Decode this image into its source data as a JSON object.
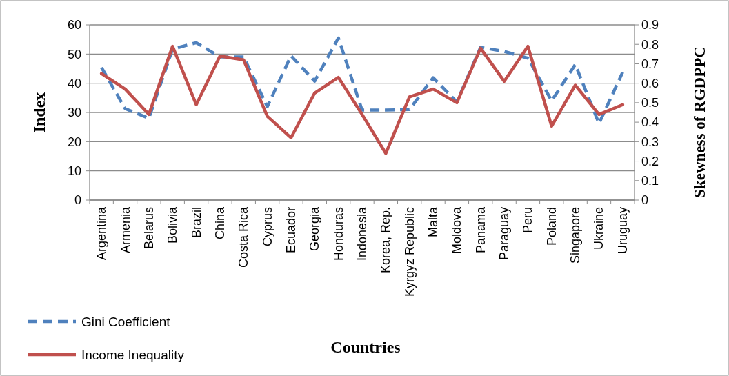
{
  "chart_data": {
    "type": "line",
    "xlabel": "Countries",
    "ylabel": "Index",
    "y2label": "Skewness of RGDPPC",
    "categories": [
      "Argentina",
      "Armenia",
      "Belarus",
      "Bolivia",
      "Brazil",
      "China",
      "Costa Rica",
      "Cyprus",
      "Ecuador",
      "Georgia",
      "Honduras",
      "Indonesia",
      "Korea, Rep.",
      "Kyrgyz Republic",
      "Malta",
      "Moldova",
      "Panama",
      "Paraguay",
      "Peru",
      "Poland",
      "Singapore",
      "Ukraine",
      "Uruguay"
    ],
    "series": [
      {
        "name": "Gini Coefficient",
        "color": "#4f81bd",
        "line_style": "dashed",
        "values": [
          45.4,
          31.3,
          28.0,
          51.7,
          53.9,
          49.0,
          49.0,
          32.0,
          49.4,
          40.7,
          55.5,
          30.8,
          30.8,
          31.0,
          41.9,
          33.6,
          52.3,
          50.9,
          48.6,
          34.0,
          46.4,
          26.2,
          43.8
        ]
      },
      {
        "name": "Income Inequality",
        "color": "#c0504d",
        "line_style": "solid",
        "axis": "y2",
        "values": [
          0.65,
          0.57,
          0.44,
          0.79,
          0.49,
          0.74,
          0.72,
          0.43,
          0.32,
          0.55,
          0.63,
          0.44,
          0.24,
          0.53,
          0.57,
          0.5,
          0.78,
          0.61,
          0.79,
          0.38,
          0.59,
          0.44,
          0.49
        ]
      }
    ],
    "ylim": [
      0,
      60
    ],
    "yticks": [
      0,
      10,
      20,
      30,
      40,
      50,
      60
    ],
    "y2lim": [
      0,
      0.9
    ],
    "y2ticks": [
      {
        "value": 0,
        "label": "0"
      },
      {
        "value": 0.1,
        "label": "0.1"
      },
      {
        "value": 0.2,
        "label": "0.2"
      },
      {
        "value": 0.3,
        "label": "0.3"
      },
      {
        "value": 0.4,
        "label": "0.4"
      },
      {
        "value": 0.5,
        "label": "0.5"
      },
      {
        "value": 0.6,
        "label": "0.6"
      },
      {
        "value": 0.7,
        "label": "0.7"
      },
      {
        "value": 0.8,
        "label": "0.8"
      },
      {
        "value": 0.9,
        "label": "0.9"
      }
    ],
    "grid": "y",
    "legend": "bottom left",
    "marker": "none"
  }
}
